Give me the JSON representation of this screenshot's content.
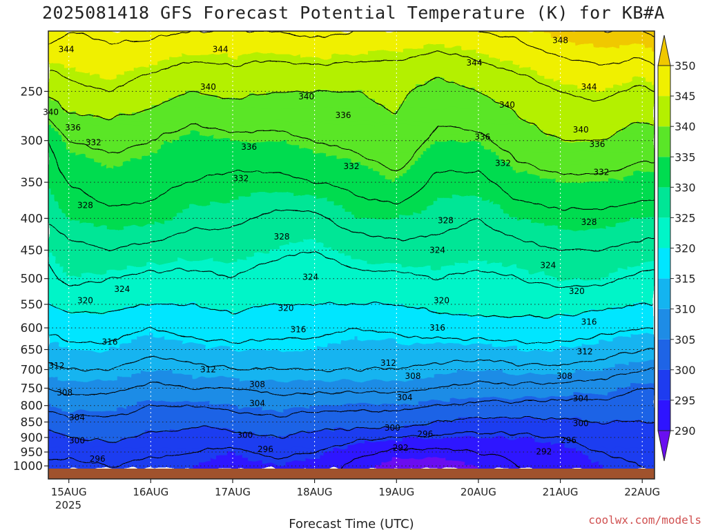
{
  "chart_data": {
    "type": "heatmap",
    "title": "2025081418 GFS Forecast Potential Temperature (K) for KB#A",
    "xlabel": "Forecast Time (UTC)",
    "ylabel": "",
    "x_ticks": [
      "15AUG",
      "16AUG",
      "17AUG",
      "18AUG",
      "19AUG",
      "20AUG",
      "21AUG",
      "22AUG"
    ],
    "x_tick_year": "2025",
    "x_range": [
      -0.25,
      7.15
    ],
    "y_ticks": [
      250,
      300,
      350,
      400,
      450,
      500,
      550,
      600,
      650,
      700,
      750,
      800,
      850,
      900,
      950,
      1000
    ],
    "y_range_hpa": [
      200,
      1010
    ],
    "y_scale": "log",
    "levels_hpa": [
      200,
      250,
      300,
      350,
      400,
      450,
      500,
      550,
      600,
      650,
      700,
      750,
      800,
      850,
      900,
      950,
      1000
    ],
    "times_days": [
      -0.25,
      0,
      0.5,
      1,
      1.5,
      2,
      2.5,
      3,
      3.5,
      4,
      4.5,
      5,
      5.5,
      6,
      6.5,
      7,
      7.15
    ],
    "theta_grid_K": [
      [
        350,
        348,
        349,
        349,
        348,
        348,
        348,
        349,
        348,
        347,
        347,
        348,
        349,
        351,
        352,
        352,
        353
      ],
      [
        341,
        343,
        344,
        342,
        340,
        341,
        340,
        340,
        340,
        341,
        338,
        340,
        342,
        344,
        345,
        343,
        344
      ],
      [
        332,
        336,
        337,
        336,
        334,
        335,
        335,
        336,
        337,
        339,
        335,
        335,
        338,
        340,
        340,
        338,
        338
      ],
      [
        330,
        332,
        334,
        333,
        332,
        331,
        331,
        332,
        333,
        335,
        331,
        331,
        334,
        335,
        335,
        334,
        334
      ],
      [
        329,
        330,
        331,
        331,
        329,
        329,
        327,
        327,
        330,
        330,
        329,
        328,
        330,
        331,
        331,
        330,
        330
      ],
      [
        325,
        327,
        328,
        327,
        326,
        326,
        325,
        324,
        326,
        327,
        327,
        326,
        327,
        328,
        328,
        327,
        327
      ],
      [
        323,
        325,
        324,
        323,
        323,
        324,
        322,
        322,
        323,
        323,
        324,
        323,
        324,
        325,
        325,
        323,
        323
      ],
      [
        320,
        321,
        321,
        320,
        320,
        321,
        320,
        320,
        320,
        320,
        321,
        322,
        322,
        322,
        321,
        320,
        320
      ],
      [
        317,
        318,
        318,
        316,
        318,
        318,
        317,
        317,
        316,
        317,
        318,
        318,
        318,
        318,
        317,
        316,
        316
      ],
      [
        314,
        315,
        315,
        313,
        314,
        315,
        315,
        315,
        314,
        314,
        314,
        314,
        315,
        315,
        314,
        312,
        312
      ],
      [
        311,
        312,
        312,
        310,
        311,
        312,
        312,
        312,
        312,
        312,
        311,
        310,
        311,
        311,
        310,
        308,
        308
      ],
      [
        308,
        309,
        309,
        307,
        308,
        308,
        309,
        309,
        309,
        309,
        308,
        307,
        307,
        307,
        306,
        304,
        304
      ],
      [
        305,
        306,
        306,
        304,
        304,
        305,
        306,
        305,
        305,
        305,
        304,
        303,
        303,
        303,
        303,
        302,
        302
      ],
      [
        302,
        303,
        303,
        302,
        301,
        302,
        303,
        302,
        302,
        302,
        300,
        299,
        299,
        299,
        300,
        300,
        300
      ],
      [
        299,
        300,
        301,
        299,
        298,
        298,
        300,
        299,
        297,
        296,
        295,
        295,
        295,
        296,
        298,
        298,
        298
      ],
      [
        297,
        297,
        298,
        297,
        296,
        295,
        297,
        296,
        293,
        291,
        291,
        292,
        293,
        294,
        296,
        297,
        297
      ],
      [
        295,
        295,
        296,
        295,
        295,
        294,
        295,
        294,
        291,
        289,
        289,
        290,
        292,
        293,
        295,
        296,
        296
      ]
    ],
    "contour_interval_K": 4,
    "fill_interval_K": 5,
    "colorbar": {
      "ticks": [
        290,
        295,
        300,
        305,
        310,
        315,
        320,
        325,
        330,
        335,
        340,
        345,
        350
      ],
      "colors": [
        "#6a0ff0",
        "#2e14ff",
        "#1e3cf0",
        "#1e64e6",
        "#1e8ce6",
        "#14b4f0",
        "#00e6ff",
        "#00f5c8",
        "#00e696",
        "#00dc50",
        "#5ae628",
        "#b4f000",
        "#f0f000",
        "#f0c800"
      ],
      "extend": "both",
      "placement": "right"
    },
    "contour_labels": [
      {
        "t": -0.03,
        "p": 214,
        "v": "344"
      },
      {
        "t": 1.85,
        "p": 214,
        "v": "344"
      },
      {
        "t": 6.0,
        "p": 207,
        "v": "348"
      },
      {
        "t": 4.95,
        "p": 225,
        "v": "344"
      },
      {
        "t": 6.35,
        "p": 246,
        "v": "344"
      },
      {
        "t": 1.7,
        "p": 246,
        "v": "340"
      },
      {
        "t": 2.9,
        "p": 255,
        "v": "340"
      },
      {
        "t": -0.22,
        "p": 270,
        "v": "340"
      },
      {
        "t": 5.35,
        "p": 263,
        "v": "340"
      },
      {
        "t": 0.05,
        "p": 286,
        "v": "336"
      },
      {
        "t": 3.35,
        "p": 273,
        "v": "336"
      },
      {
        "t": 6.25,
        "p": 288,
        "v": "340"
      },
      {
        "t": 0.3,
        "p": 302,
        "v": "332"
      },
      {
        "t": 2.2,
        "p": 307,
        "v": "336"
      },
      {
        "t": 5.05,
        "p": 296,
        "v": "336"
      },
      {
        "t": 6.45,
        "p": 304,
        "v": "336"
      },
      {
        "t": 3.45,
        "p": 330,
        "v": "332"
      },
      {
        "t": 5.3,
        "p": 326,
        "v": "332"
      },
      {
        "t": 2.1,
        "p": 345,
        "v": "332"
      },
      {
        "t": 6.5,
        "p": 337,
        "v": "332"
      },
      {
        "t": 0.2,
        "p": 381,
        "v": "328"
      },
      {
        "t": 4.6,
        "p": 403,
        "v": "328"
      },
      {
        "t": 6.35,
        "p": 406,
        "v": "328"
      },
      {
        "t": 2.6,
        "p": 428,
        "v": "328"
      },
      {
        "t": 4.5,
        "p": 450,
        "v": "324"
      },
      {
        "t": 5.85,
        "p": 476,
        "v": "324"
      },
      {
        "t": 0.65,
        "p": 520,
        "v": "324"
      },
      {
        "t": 2.95,
        "p": 497,
        "v": "324"
      },
      {
        "t": 6.2,
        "p": 524,
        "v": "320"
      },
      {
        "t": 0.2,
        "p": 542,
        "v": "320"
      },
      {
        "t": 2.65,
        "p": 558,
        "v": "320"
      },
      {
        "t": 4.55,
        "p": 542,
        "v": "320"
      },
      {
        "t": 6.35,
        "p": 587,
        "v": "316"
      },
      {
        "t": 2.8,
        "p": 604,
        "v": "316"
      },
      {
        "t": 4.5,
        "p": 600,
        "v": "316"
      },
      {
        "t": 0.5,
        "p": 632,
        "v": "316"
      },
      {
        "t": 6.3,
        "p": 655,
        "v": "312"
      },
      {
        "t": -0.15,
        "p": 690,
        "v": "312"
      },
      {
        "t": 1.7,
        "p": 700,
        "v": "312"
      },
      {
        "t": 3.9,
        "p": 683,
        "v": "312"
      },
      {
        "t": 6.05,
        "p": 717,
        "v": "308"
      },
      {
        "t": 4.2,
        "p": 717,
        "v": "308"
      },
      {
        "t": 2.3,
        "p": 740,
        "v": "308"
      },
      {
        "t": -0.05,
        "p": 763,
        "v": "308"
      },
      {
        "t": 6.25,
        "p": 779,
        "v": "304"
      },
      {
        "t": 2.3,
        "p": 793,
        "v": "304"
      },
      {
        "t": 4.1,
        "p": 776,
        "v": "304"
      },
      {
        "t": 0.1,
        "p": 836,
        "v": "304"
      },
      {
        "t": 6.25,
        "p": 854,
        "v": "300"
      },
      {
        "t": 3.95,
        "p": 869,
        "v": "300"
      },
      {
        "t": 2.15,
        "p": 892,
        "v": "300"
      },
      {
        "t": 4.35,
        "p": 889,
        "v": "296"
      },
      {
        "t": 6.1,
        "p": 909,
        "v": "296"
      },
      {
        "t": 0.1,
        "p": 911,
        "v": "300"
      },
      {
        "t": 2.4,
        "p": 940,
        "v": "296"
      },
      {
        "t": 4.05,
        "p": 936,
        "v": "292"
      },
      {
        "t": 5.8,
        "p": 949,
        "v": "292"
      },
      {
        "t": 0.35,
        "p": 974,
        "v": "296"
      }
    ]
  },
  "credit": "coolwx.com/models"
}
